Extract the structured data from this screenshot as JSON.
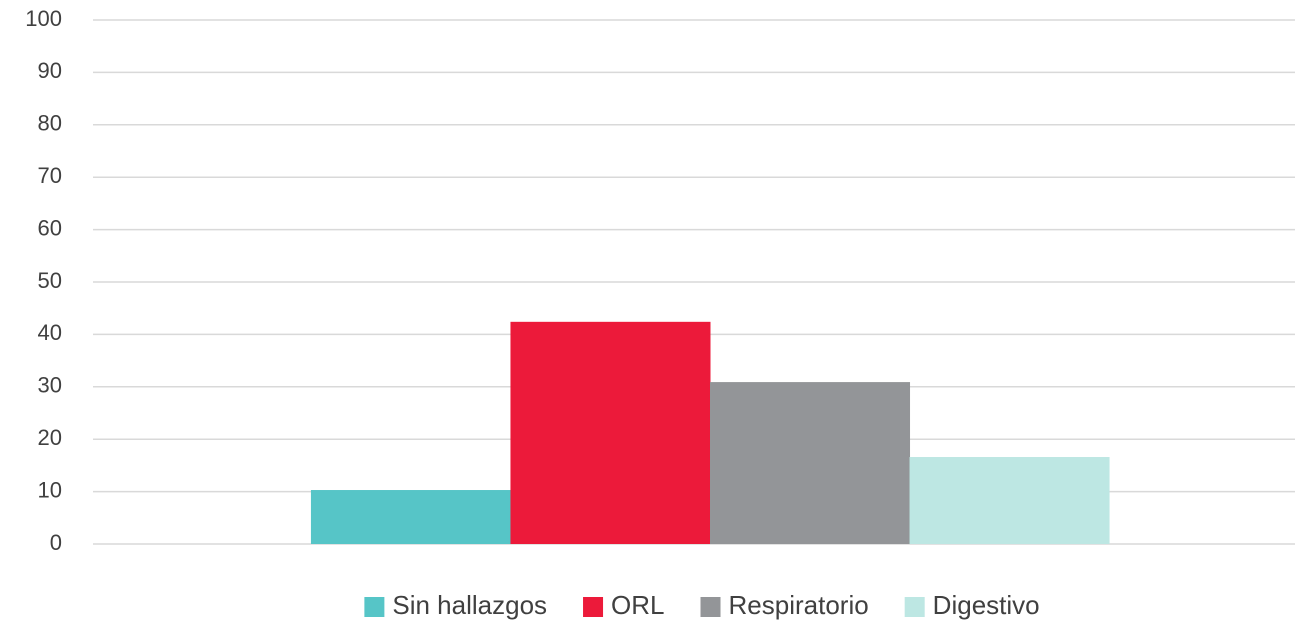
{
  "chart_data": {
    "type": "bar",
    "categories": [
      null
    ],
    "series": [
      {
        "name": "Sin hallazgos",
        "color": "#56c5c7",
        "values": [
          10.3
        ]
      },
      {
        "name": "ORL",
        "color": "#ec1a3a",
        "values": [
          42.4
        ]
      },
      {
        "name": "Respiratorio",
        "color": "#939598",
        "values": [
          30.9
        ]
      },
      {
        "name": "Digestivo",
        "color": "#bde7e3",
        "values": [
          16.6
        ]
      }
    ],
    "ylim": [
      0,
      100
    ],
    "yticks": [
      0,
      10,
      20,
      30,
      40,
      50,
      60,
      70,
      80,
      90,
      100
    ],
    "grid": true,
    "legend": "bottom"
  }
}
